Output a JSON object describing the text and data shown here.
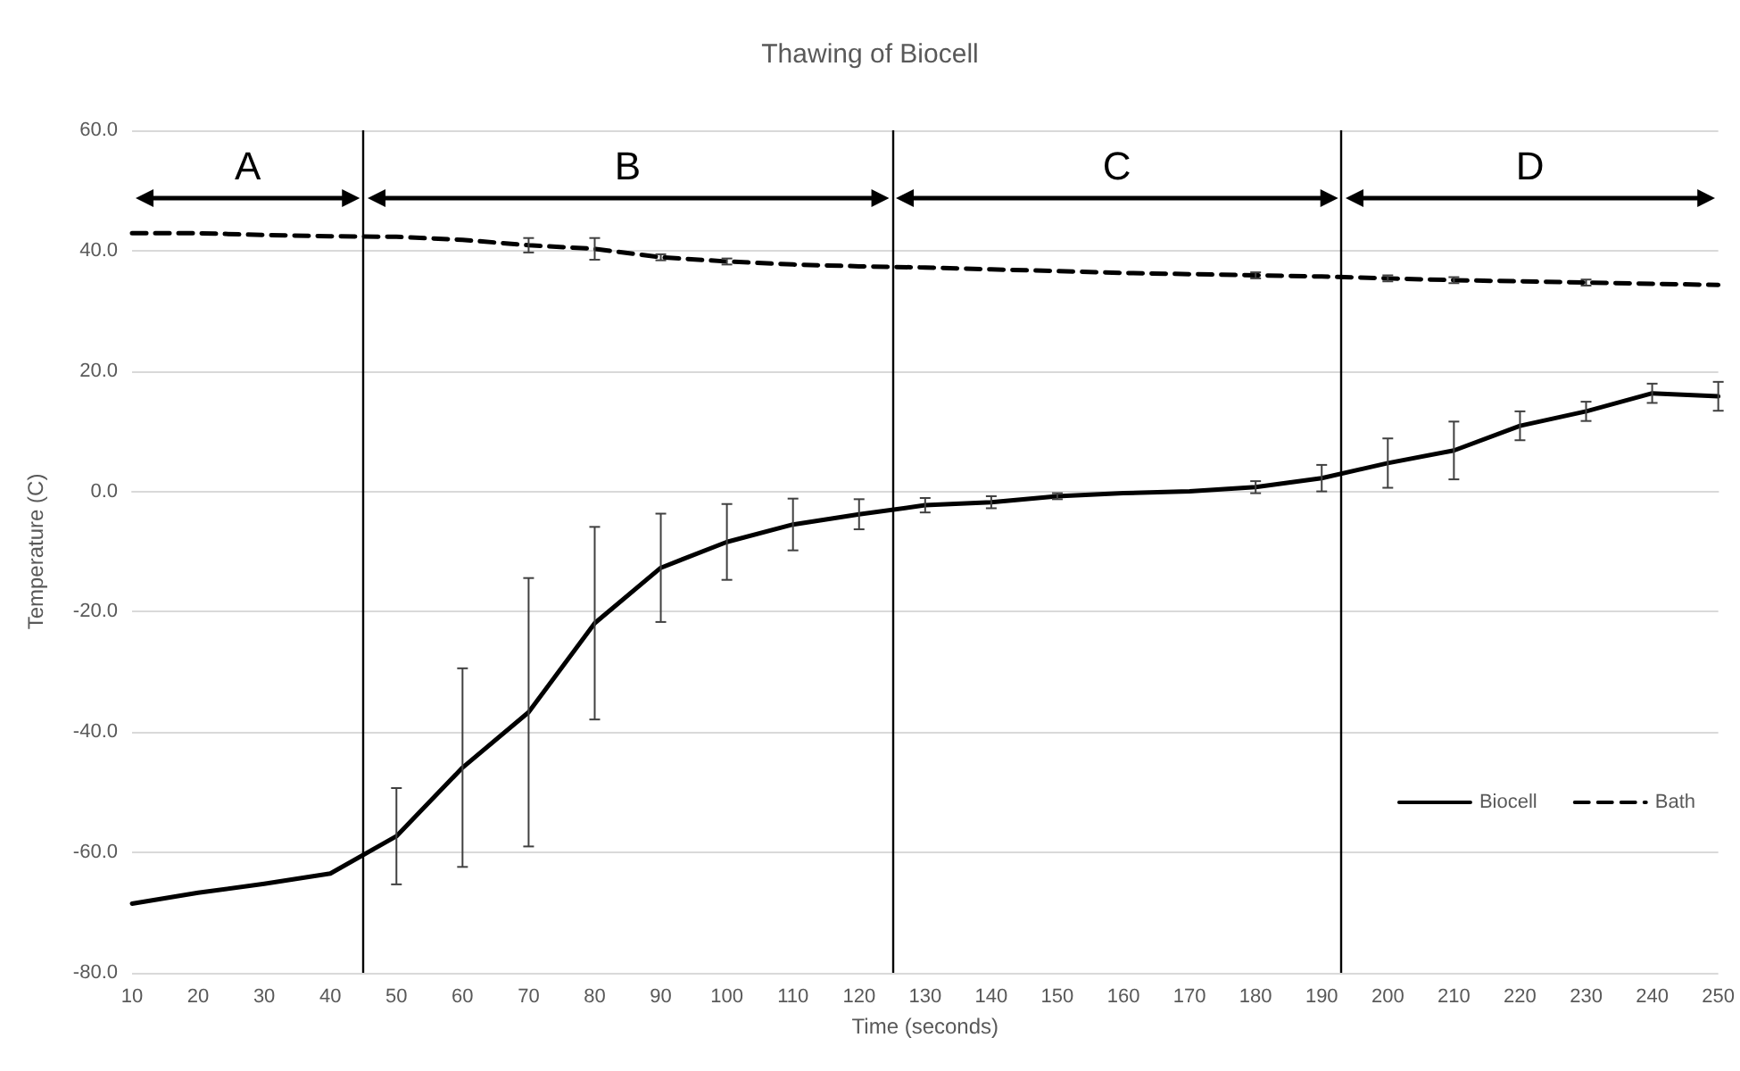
{
  "chart_data": {
    "type": "line",
    "title": "Thawing of Biocell",
    "xlabel": "Time (seconds)",
    "ylabel": "Temperature (C)",
    "x": [
      10,
      20,
      30,
      40,
      50,
      60,
      70,
      80,
      90,
      100,
      110,
      120,
      130,
      140,
      150,
      160,
      170,
      180,
      190,
      200,
      210,
      220,
      230,
      240,
      250
    ],
    "series": [
      {
        "name": "Biocell",
        "color": "#000000",
        "line_style": "solid",
        "values": [
          -68.5,
          -66.7,
          -65.2,
          -63.5,
          -57.3,
          -45.9,
          -36.7,
          -21.9,
          -12.7,
          -8.4,
          -5.5,
          -3.8,
          -2.3,
          -1.8,
          -0.8,
          -0.3,
          0,
          0.7,
          2.2,
          4.7,
          6.8,
          10.9,
          13.3,
          16.3,
          15.8
        ],
        "errors": [
          null,
          null,
          null,
          null,
          8,
          16.5,
          22.3,
          16,
          9,
          6.3,
          4.3,
          2.5,
          1.2,
          1,
          0.5,
          null,
          null,
          1,
          2.2,
          4.1,
          4.8,
          2.4,
          1.6,
          1.6,
          2.4
        ]
      },
      {
        "name": "Bath",
        "color": "#000000",
        "line_style": "dashed",
        "values": [
          42.9,
          42.9,
          42.6,
          42.4,
          42.3,
          41.8,
          40.9,
          40.3,
          38.9,
          38.2,
          37.7,
          37.4,
          37.2,
          36.9,
          36.6,
          36.3,
          36.1,
          35.9,
          35.7,
          35.4,
          35.1,
          34.9,
          34.7,
          34.5,
          34.3
        ],
        "errors": [
          null,
          null,
          null,
          null,
          null,
          null,
          1.2,
          1.8,
          0.5,
          0.5,
          null,
          null,
          null,
          null,
          null,
          null,
          null,
          0.5,
          null,
          0.5,
          0.5,
          null,
          0.5,
          null,
          null
        ]
      }
    ],
    "xlim": [
      10,
      250
    ],
    "xticks": [
      10,
      20,
      30,
      40,
      50,
      60,
      70,
      80,
      90,
      100,
      110,
      120,
      130,
      140,
      150,
      160,
      170,
      180,
      190,
      200,
      210,
      220,
      230,
      240,
      250
    ],
    "ylim": [
      -80,
      60
    ],
    "yticks": [
      {
        "value": -80,
        "label": "-80.0"
      },
      {
        "value": -60,
        "label": "-60.0"
      },
      {
        "value": -40,
        "label": "-40.0"
      },
      {
        "value": -20,
        "label": "-20.0"
      },
      {
        "value": 0,
        "label": "0.0"
      },
      {
        "value": 20,
        "label": "20.0"
      },
      {
        "value": 40,
        "label": "40.0"
      },
      {
        "value": 60,
        "label": "60.0"
      }
    ],
    "ref_lines": [
      {
        "axis": "x",
        "value": 45,
        "label": null,
        "color": "#000000"
      },
      {
        "axis": "x",
        "value": 125,
        "label": null,
        "color": "#000000"
      },
      {
        "axis": "x",
        "value": 193,
        "label": null,
        "color": "#000000"
      }
    ],
    "annotations": [
      "A",
      "B",
      "C",
      "D"
    ],
    "grid": "y",
    "legend": "bottom right",
    "marker": "none"
  }
}
